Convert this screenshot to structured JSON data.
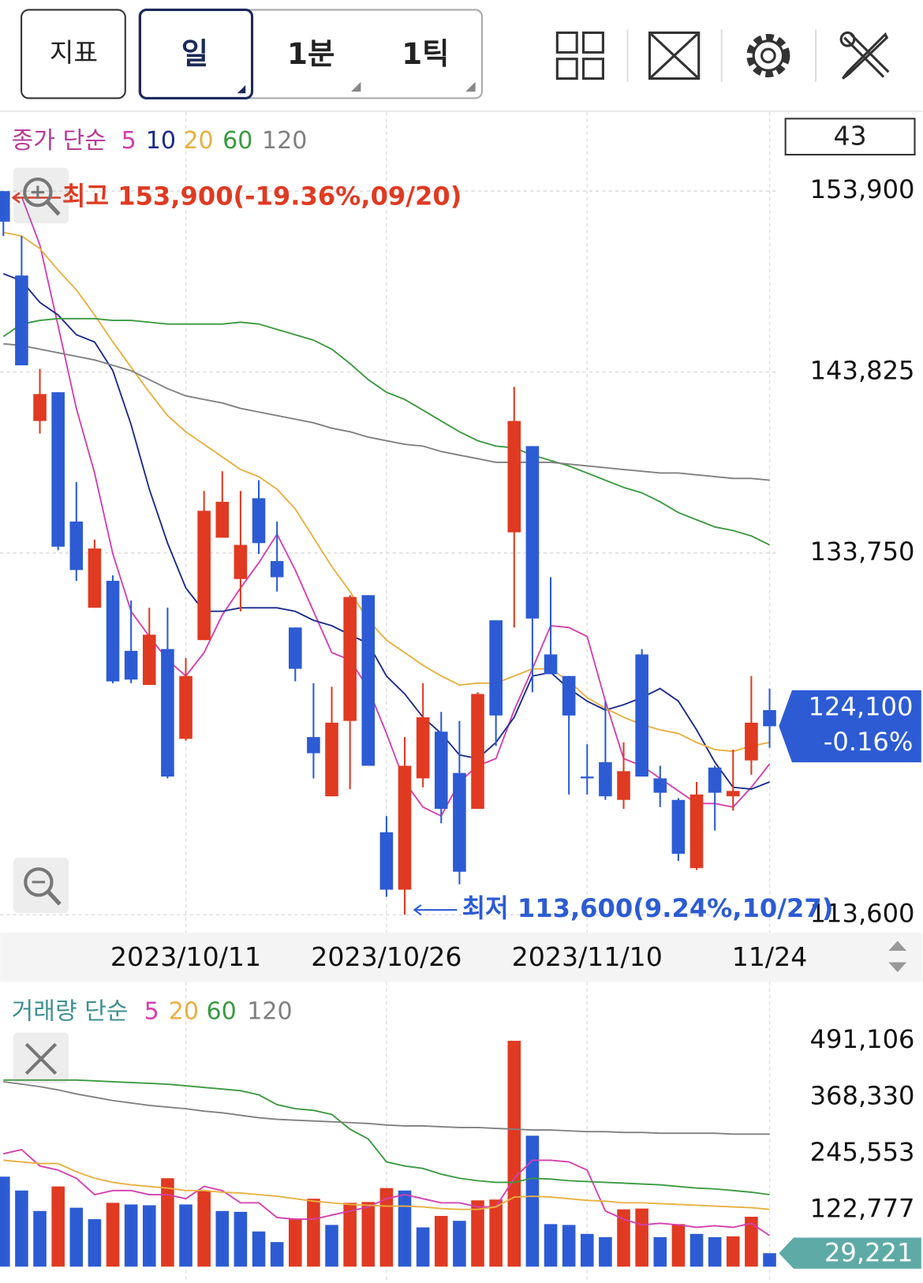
{
  "toolbar": {
    "indicator_button": "지표",
    "periods": [
      "일",
      "1분",
      "1틱"
    ]
  },
  "chart_data": [
    {
      "type": "candlestick",
      "legend_title": "종가 단순",
      "visible_count": 43,
      "categories": [
        null,
        null,
        null,
        null,
        null,
        null,
        null,
        null,
        null,
        null,
        "2023/10/11",
        null,
        null,
        null,
        null,
        null,
        null,
        null,
        null,
        null,
        null,
        "2023/10/26",
        null,
        null,
        null,
        null,
        null,
        null,
        null,
        null,
        null,
        null,
        "2023/11/10",
        null,
        null,
        null,
        null,
        null,
        null,
        null,
        null,
        null,
        "11/24"
      ],
      "open": [
        153900,
        149200,
        141100,
        142700,
        135500,
        130700,
        132200,
        128300,
        126400,
        128400,
        123400,
        128900,
        134600,
        132300,
        136800,
        133300,
        129600,
        123500,
        120200,
        124400,
        131400,
        118200,
        115000,
        121200,
        123800,
        121500,
        119500,
        130000,
        134900,
        139700,
        128100,
        126900,
        121300,
        122100,
        120000,
        128100,
        121200,
        120000,
        116200,
        121800,
        120200,
        122200,
        125000
      ],
      "high": [
        153900,
        151400,
        144000,
        142700,
        137700,
        134500,
        132500,
        131100,
        130700,
        130700,
        127900,
        137200,
        138300,
        137200,
        137800,
        135500,
        129600,
        126500,
        126300,
        131400,
        131400,
        119100,
        123500,
        126500,
        124900,
        124400,
        126000,
        130000,
        143000,
        139700,
        132400,
        126900,
        123100,
        125500,
        123200,
        128400,
        121900,
        120100,
        121000,
        121900,
        122800,
        126900,
        126200
      ],
      "low": [
        151400,
        144200,
        140400,
        133900,
        132200,
        130700,
        126500,
        126500,
        126400,
        121200,
        123300,
        128900,
        134600,
        130500,
        133700,
        131600,
        126600,
        121200,
        120200,
        120600,
        121900,
        114600,
        113600,
        120700,
        118700,
        115300,
        119500,
        123000,
        129600,
        126000,
        127000,
        120300,
        120300,
        120000,
        119500,
        121300,
        119600,
        116600,
        116100,
        118300,
        119400,
        121400,
        122900
      ],
      "close": [
        152200,
        144200,
        142600,
        134100,
        132800,
        134000,
        126600,
        126700,
        129200,
        121300,
        126900,
        136100,
        136600,
        134200,
        134300,
        132400,
        127300,
        122600,
        124300,
        131300,
        121900,
        115000,
        121900,
        124600,
        119500,
        116000,
        125900,
        124700,
        141100,
        130100,
        127000,
        124700,
        121200,
        120200,
        121600,
        121300,
        120400,
        117000,
        120300,
        120400,
        120500,
        124300,
        124100
      ],
      "up_color": "#e03a22",
      "down_color": "#2c5bd4",
      "ylim": [
        112600,
        158300
      ],
      "yticks": [
        {
          "value": 113600,
          "label": "113,600"
        },
        {
          "value": 133750,
          "label": "133,750"
        },
        {
          "value": 143825,
          "label": "143,825"
        },
        {
          "value": 153900,
          "label": "153,900"
        }
      ],
      "grid": true,
      "series": [
        {
          "name": "5",
          "color": "#d43fae",
          "values": [
            null,
            153600,
            150900,
            146400,
            141800,
            138200,
            133700,
            130500,
            129100,
            127800,
            126900,
            128200,
            130300,
            131800,
            133200,
            134800,
            132800,
            130500,
            128200,
            127800,
            126200,
            123700,
            121000,
            119600,
            119100,
            121000,
            121900,
            122300,
            125000,
            127300,
            129700,
            129600,
            129100,
            125500,
            122300,
            121900,
            121200,
            120500,
            119800,
            119800,
            119600,
            120700,
            122000
          ]
        },
        {
          "name": "10",
          "color": "#1a2a8a",
          "values": [
            149300,
            148900,
            147700,
            147000,
            145900,
            145500,
            143900,
            140900,
            137300,
            134300,
            131800,
            130500,
            130500,
            130700,
            130700,
            130700,
            130500,
            130000,
            129700,
            129200,
            128700,
            126900,
            125900,
            124600,
            123700,
            122500,
            122300,
            123200,
            124600,
            126900,
            127100,
            126200,
            125500,
            125000,
            125300,
            125700,
            126200,
            125500,
            123900,
            122100,
            120700,
            120600,
            121000
          ]
        },
        {
          "name": "20",
          "color": "#e8b040",
          "values": [
            151600,
            151400,
            150700,
            149500,
            148400,
            147000,
            145500,
            144100,
            142700,
            141400,
            140500,
            139800,
            139100,
            138400,
            138000,
            137300,
            136200,
            134600,
            133000,
            131600,
            130000,
            128900,
            128200,
            127500,
            126900,
            126400,
            126500,
            126500,
            126900,
            127300,
            127300,
            126600,
            125700,
            125100,
            124600,
            124200,
            123900,
            123700,
            123200,
            122800,
            122700,
            123000,
            123200
          ]
        },
        {
          "name": "60",
          "color": "#3a9a40",
          "values": [
            145800,
            146500,
            146700,
            146800,
            146800,
            146800,
            146700,
            146700,
            146600,
            146500,
            146500,
            146500,
            146500,
            146600,
            146500,
            146200,
            145900,
            145600,
            145100,
            144300,
            143400,
            142700,
            142300,
            141700,
            141100,
            140500,
            140000,
            139700,
            139600,
            139200,
            138900,
            138600,
            138200,
            137800,
            137400,
            137100,
            136600,
            136000,
            135600,
            135200,
            135000,
            134700,
            134200
          ]
        },
        {
          "name": "120",
          "color": "#808080",
          "values": [
            145400,
            145300,
            145100,
            144900,
            144700,
            144500,
            144200,
            143900,
            143400,
            142900,
            142500,
            142300,
            142100,
            141800,
            141600,
            141400,
            141200,
            141000,
            140700,
            140500,
            140200,
            140000,
            139800,
            139700,
            139400,
            139200,
            139000,
            138800,
            138800,
            138800,
            138800,
            138700,
            138600,
            138500,
            138400,
            138300,
            138200,
            138200,
            138100,
            138000,
            137900,
            137900,
            137800
          ]
        }
      ],
      "max_label": "최고 153,900(-19.36%,09/20)",
      "min_label": "최저 113,600(9.24%,10/27)",
      "last_price_label": "124,100",
      "change_label": "-0.16%"
    },
    {
      "type": "bar",
      "legend_title": "거래량 단순",
      "values": [
        195700,
        165500,
        121000,
        174400,
        128100,
        103200,
        138800,
        135200,
        133500,
        192200,
        135200,
        165500,
        121000,
        119200,
        76500,
        53400,
        103200,
        147700,
        90700,
        138800,
        140600,
        170800,
        165500,
        85400,
        110300,
        99600,
        144100,
        145900,
        491106,
        284700,
        92500,
        90700,
        71200,
        64100,
        124600,
        126300,
        64100,
        92500,
        71200,
        64100,
        65800,
        108500,
        29221
      ],
      "up_color": "#e03a22",
      "down_color": "#2c5bd4",
      "ylim": [
        0,
        508900
      ],
      "yticks": [
        {
          "value": 122777,
          "label": "122,777"
        },
        {
          "value": 245553,
          "label": "245,553"
        },
        {
          "value": 368330,
          "label": "368,330"
        },
        {
          "value": 491106,
          "label": "491,106"
        }
      ],
      "grid": false,
      "series": [
        {
          "name": "5",
          "color": "#d43fae",
          "values": [
            245600,
            254500,
            218900,
            210000,
            192200,
            156600,
            165500,
            165500,
            156600,
            156600,
            147700,
            174400,
            165500,
            138800,
            138800,
            106800,
            103200,
            103200,
            112100,
            121000,
            129900,
            147700,
            156600,
            147700,
            138800,
            138800,
            129900,
            129900,
            192200,
            231300,
            231300,
            227800,
            210000,
            121000,
            103200,
            90700,
            94300,
            90700,
            85400,
            89000,
            85400,
            94300,
            67600
          ]
        },
        {
          "name": "20",
          "color": "#e8b040",
          "values": [
            231300,
            227800,
            224200,
            224200,
            206400,
            192200,
            183300,
            177900,
            174400,
            170800,
            165500,
            165500,
            161900,
            160100,
            156600,
            153000,
            147700,
            142400,
            138800,
            135200,
            133500,
            131700,
            131700,
            129900,
            126300,
            124600,
            124600,
            129900,
            151200,
            153000,
            151200,
            147700,
            144100,
            142400,
            138800,
            138800,
            137000,
            135200,
            133500,
            131700,
            129900,
            128100,
            124600
          ]
        },
        {
          "name": "60",
          "color": "#3a9a40",
          "values": [
            405700,
            405700,
            405700,
            405700,
            405700,
            403900,
            402100,
            400400,
            398600,
            396800,
            393300,
            389700,
            386100,
            382600,
            373700,
            352300,
            343400,
            339900,
            331000,
            298900,
            277600,
            227800,
            218900,
            213500,
            201100,
            192200,
            186800,
            183300,
            183300,
            192200,
            190400,
            186800,
            185100,
            183300,
            181500,
            179700,
            177900,
            174400,
            170800,
            169000,
            165500,
            161900,
            156600
          ]
        },
        {
          "name": "120",
          "color": "#808080",
          "values": [
            402100,
            396800,
            391500,
            384400,
            375400,
            368300,
            361200,
            355900,
            350500,
            347000,
            343400,
            338100,
            334500,
            329200,
            323900,
            320300,
            318500,
            316700,
            315000,
            313200,
            311400,
            307800,
            306100,
            306100,
            304300,
            302500,
            302500,
            300700,
            298900,
            297200,
            297200,
            295400,
            293600,
            293600,
            291800,
            291800,
            290000,
            290000,
            290000,
            290000,
            288300,
            288300,
            288300
          ]
        }
      ],
      "last_value_label": "29,221",
      "badge_color": "#5eaaa6"
    }
  ]
}
